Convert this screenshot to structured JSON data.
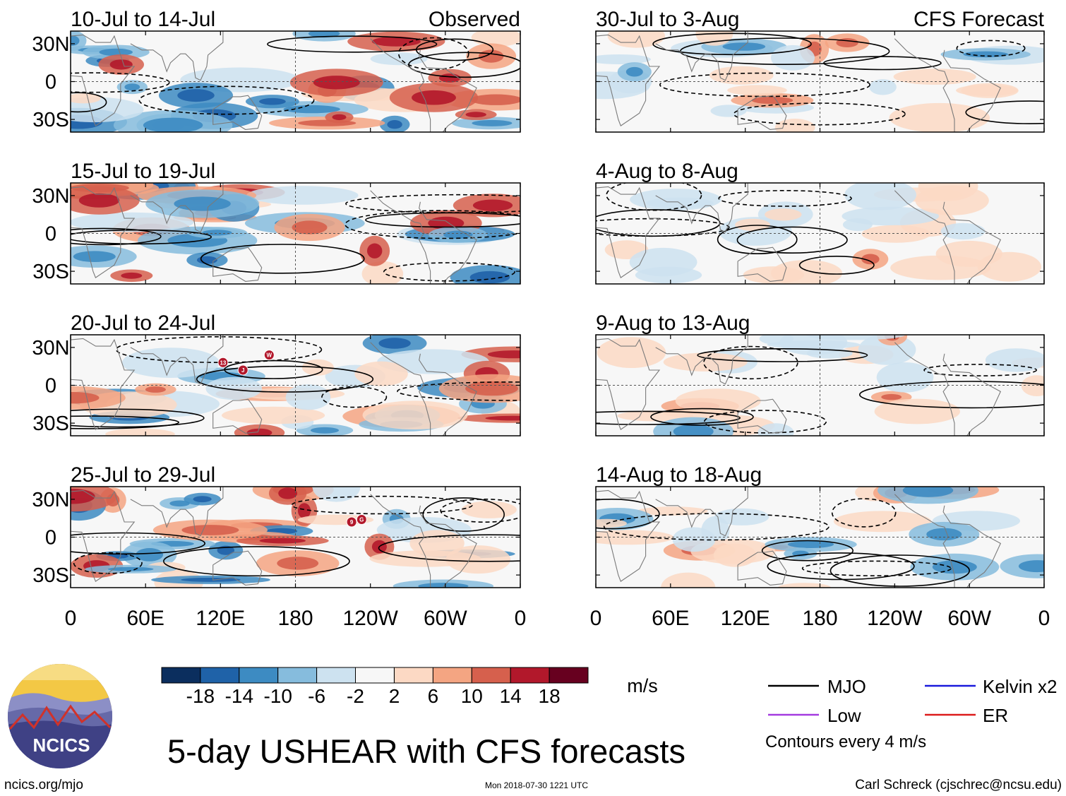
{
  "chart_data": {
    "type": "heatmap",
    "title": "5-day USHEAR with CFS forecasts",
    "field": "USHEAR",
    "units": "m/s",
    "column_labels": {
      "left": "Observed",
      "right": "CFS Forecast"
    },
    "panels": [
      {
        "column": "left",
        "row": 0,
        "period": "10-Jul to 14-Jul",
        "source": "observed",
        "storm_markers": []
      },
      {
        "column": "left",
        "row": 1,
        "period": "15-Jul to 19-Jul",
        "source": "observed",
        "storm_markers": []
      },
      {
        "column": "left",
        "row": 2,
        "period": "20-Jul to 24-Jul",
        "source": "observed",
        "storm_markers": [
          "13",
          "J",
          "W"
        ]
      },
      {
        "column": "left",
        "row": 3,
        "period": "25-Jul to 29-Jul",
        "source": "observed",
        "storm_markers": [
          "9",
          "G"
        ]
      },
      {
        "column": "right",
        "row": 0,
        "period": "30-Jul to 3-Aug",
        "source": "forecast",
        "storm_markers": []
      },
      {
        "column": "right",
        "row": 1,
        "period": "4-Aug to 8-Aug",
        "source": "forecast",
        "storm_markers": []
      },
      {
        "column": "right",
        "row": 2,
        "period": "9-Aug to 13-Aug",
        "source": "forecast",
        "storm_markers": []
      },
      {
        "column": "right",
        "row": 3,
        "period": "14-Aug to 18-Aug",
        "source": "forecast",
        "storm_markers": []
      }
    ],
    "x_axis": {
      "lon_range": [
        0,
        360
      ],
      "ticks": [
        {
          "lon": 0,
          "label": "0"
        },
        {
          "lon": 60,
          "label": "60E"
        },
        {
          "lon": 120,
          "label": "120E"
        },
        {
          "lon": 180,
          "label": "180"
        },
        {
          "lon": 240,
          "label": "120W"
        },
        {
          "lon": 300,
          "label": "60W"
        },
        {
          "lon": 360,
          "label": "0"
        }
      ]
    },
    "y_axis": {
      "lat_range": [
        -40,
        40
      ],
      "ticks": [
        {
          "lat": 30,
          "label": "30N"
        },
        {
          "lat": 0,
          "label": "0"
        },
        {
          "lat": -30,
          "label": "30S"
        }
      ]
    },
    "colorbar": {
      "colors": [
        "#0b2e5e",
        "#1f62a8",
        "#3d8bc2",
        "#86bcdd",
        "#cde2f0",
        "#f7f7f7",
        "#fcd9c4",
        "#f4a582",
        "#d6604d",
        "#b2182b",
        "#67001f"
      ],
      "tick_labels": [
        "-18",
        "-14",
        "-10",
        "-6",
        "-2",
        "2",
        "6",
        "10",
        "14",
        "18"
      ],
      "units_label": "m/s"
    },
    "legend": {
      "items": [
        {
          "label": "MJO",
          "color": "#000000"
        },
        {
          "label": "Kelvin x2",
          "color": "#1a1adc"
        },
        {
          "label": "Low",
          "color": "#a43be0"
        },
        {
          "label": "ER",
          "color": "#dd1c1c"
        }
      ],
      "note": "Contours every 4 m/s"
    }
  },
  "logo": {
    "text": "NCICS"
  },
  "footer": {
    "url": "ncics.org/mjo",
    "timestamp": "Mon 2018-07-30 1221 UTC",
    "credit": "Carl Schreck (cjschrec@ncsu.edu)"
  }
}
